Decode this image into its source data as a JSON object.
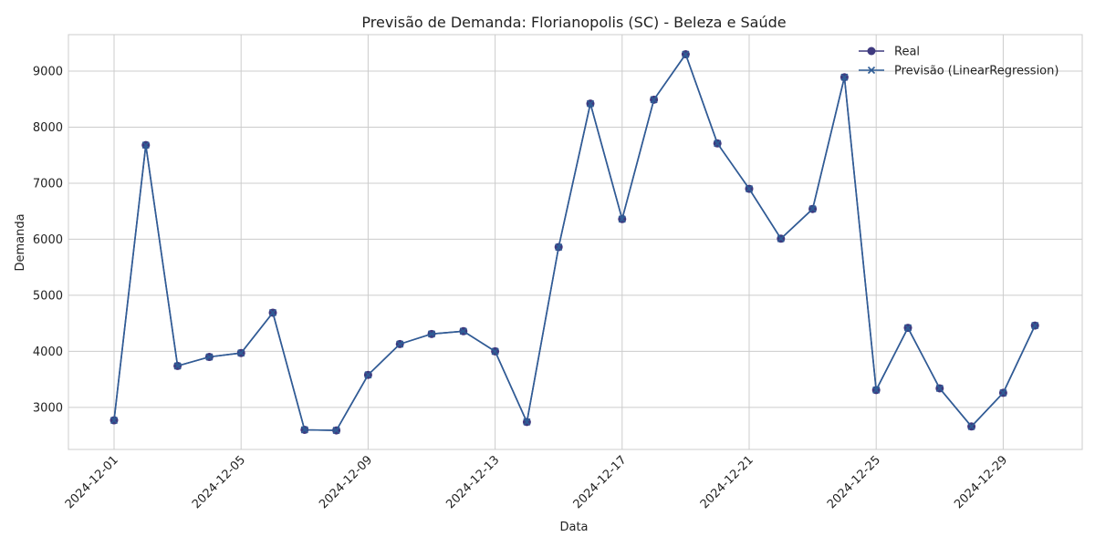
{
  "chart_data": {
    "type": "line",
    "title": "Previsão de Demanda: Florianopolis (SC) - Beleza e Saúde",
    "xlabel": "Data",
    "ylabel": "Demanda",
    "x": [
      "2024-12-01",
      "2024-12-02",
      "2024-12-03",
      "2024-12-04",
      "2024-12-05",
      "2024-12-06",
      "2024-12-07",
      "2024-12-08",
      "2024-12-09",
      "2024-12-10",
      "2024-12-11",
      "2024-12-12",
      "2024-12-13",
      "2024-12-14",
      "2024-12-15",
      "2024-12-16",
      "2024-12-17",
      "2024-12-18",
      "2024-12-19",
      "2024-12-20",
      "2024-12-21",
      "2024-12-22",
      "2024-12-23",
      "2024-12-24",
      "2024-12-25",
      "2024-12-26",
      "2024-12-27",
      "2024-12-28",
      "2024-12-29",
      "2024-12-30"
    ],
    "x_ticks": [
      "2024-12-01",
      "2024-12-05",
      "2024-12-09",
      "2024-12-13",
      "2024-12-17",
      "2024-12-21",
      "2024-12-25",
      "2024-12-29"
    ],
    "y_ticks": [
      3000,
      4000,
      5000,
      6000,
      7000,
      8000,
      9000
    ],
    "ylim": [
      2250,
      9650
    ],
    "grid": true,
    "legend_position": "top-right",
    "series": [
      {
        "name": "Real",
        "marker": "circle",
        "color": "#3f3a7f",
        "values": [
          2770,
          7680,
          3740,
          3900,
          3970,
          4690,
          2600,
          2590,
          3580,
          4130,
          4310,
          4360,
          4000,
          2740,
          5860,
          8420,
          6360,
          8490,
          9300,
          7710,
          6900,
          6010,
          6540,
          8890,
          3310,
          4420,
          3340,
          2660,
          3260,
          4460
        ]
      },
      {
        "name": "Previsão (LinearRegression)",
        "marker": "x",
        "color": "#2f5d96",
        "values": [
          2770,
          7680,
          3740,
          3900,
          3970,
          4690,
          2600,
          2590,
          3580,
          4130,
          4310,
          4360,
          4000,
          2740,
          5860,
          8420,
          6360,
          8490,
          9300,
          7710,
          6900,
          6010,
          6540,
          8890,
          3310,
          4420,
          3340,
          2660,
          3260,
          4460
        ]
      }
    ]
  }
}
